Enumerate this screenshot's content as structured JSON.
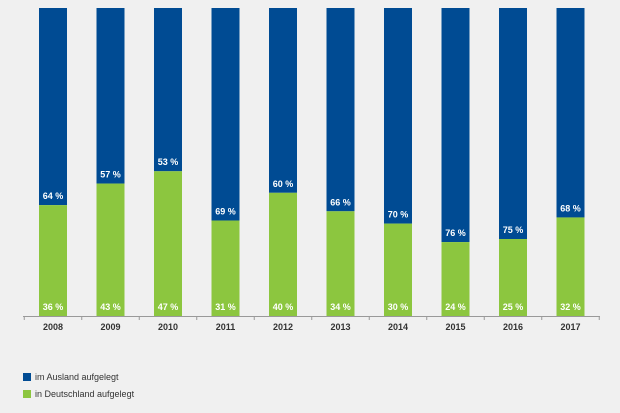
{
  "chart_data": {
    "type": "bar",
    "stacked": true,
    "percent_scale": true,
    "categories": [
      "2008",
      "2009",
      "2010",
      "2011",
      "2012",
      "2013",
      "2014",
      "2015",
      "2016",
      "2017"
    ],
    "series": [
      {
        "name": "in Deutschland aufgelegt",
        "color": "#8cc63f",
        "values": [
          36,
          43,
          47,
          31,
          40,
          34,
          30,
          24,
          25,
          32
        ],
        "labels": [
          "36 %",
          "43 %",
          "47 %",
          "31 %",
          "40 %",
          "34 %",
          "30 %",
          "24 %",
          "25 %",
          "32 %"
        ]
      },
      {
        "name": "im Ausland aufgelegt",
        "color": "#004b93",
        "values": [
          64,
          57,
          53,
          69,
          60,
          66,
          70,
          76,
          75,
          68
        ],
        "labels": [
          "64 %",
          "57 %",
          "53 %",
          "69 %",
          "60 %",
          "66 %",
          "70 %",
          "76 %",
          "75 %",
          "68 %"
        ]
      }
    ],
    "ylim": [
      0,
      100
    ],
    "grid": false,
    "legend_position": "bottom-left",
    "axis_color": "#999999"
  },
  "legend": [
    {
      "label": "im Ausland aufgelegt",
      "color": "#004b93"
    },
    {
      "label": "in Deutschland aufgelegt",
      "color": "#8cc63f"
    }
  ]
}
